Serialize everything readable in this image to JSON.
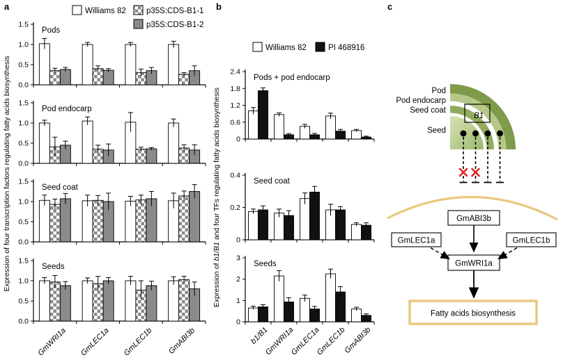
{
  "figure": {
    "panel_letters": [
      "a",
      "b",
      "c"
    ]
  },
  "colors": {
    "bar_white": "#ffffff",
    "bar_gray": "#8a8a8a",
    "bar_black": "#111111",
    "checker_gray": "#8a8a8a",
    "pod_green": "#7e9a4b",
    "endocarp_green": "#b6c887",
    "seed_coat_green": "#92ac5e",
    "seed_light_green": "#d6e3b4",
    "seed_dark_green": "#9cb96d",
    "membrane_tan": "#e9c87e",
    "x_red": "#e62226"
  },
  "chart_data": [
    {
      "panel": "a",
      "type": "bar",
      "ylabel": "Expression of four transcription factors regulating fatty acids biosynthesis",
      "categories": [
        "GmWRI1a",
        "GmLEC1a",
        "GmLEC1b",
        "GmABI3b"
      ],
      "legend": [
        {
          "label": "Williams 82",
          "style": "white"
        },
        {
          "label": "p35S:CDS-B1-1",
          "style": "checker"
        },
        {
          "label": "p35S:CDS-B1-2",
          "style": "gray"
        }
      ],
      "subcharts": [
        {
          "title": "Pods",
          "ylim": [
            0,
            1.5
          ],
          "yticks": [
            "0.0",
            "0.5",
            "1.0",
            "1.5"
          ],
          "series": [
            {
              "name": "Williams 82",
              "style": "white",
              "values": [
                1.02,
                1.0,
                1.0,
                1.0
              ],
              "errors": [
                0.13,
                0.05,
                0.05,
                0.08
              ]
            },
            {
              "name": "p35S:CDS-B1-1",
              "style": "checker",
              "values": [
                0.35,
                0.4,
                0.3,
                0.26
              ],
              "errors": [
                0.06,
                0.07,
                0.09,
                0.04
              ]
            },
            {
              "name": "p35S:CDS-B1-2",
              "style": "gray",
              "values": [
                0.38,
                0.36,
                0.35,
                0.35
              ],
              "errors": [
                0.05,
                0.04,
                0.08,
                0.12
              ]
            }
          ]
        },
        {
          "title": "Pod endocarp",
          "ylim": [
            0,
            1.5
          ],
          "yticks": [
            "0.0",
            "0.5",
            "1.0",
            "1.5"
          ],
          "series": [
            {
              "name": "Williams 82",
              "style": "white",
              "values": [
                1.0,
                1.05,
                1.02,
                1.0
              ],
              "errors": [
                0.07,
                0.1,
                0.24,
                0.1
              ]
            },
            {
              "name": "p35S:CDS-B1-1",
              "style": "checker",
              "values": [
                0.41,
                0.35,
                0.35,
                0.38
              ],
              "errors": [
                0.24,
                0.1,
                0.05,
                0.08
              ]
            },
            {
              "name": "p35S:CDS-B1-2",
              "style": "gray",
              "values": [
                0.45,
                0.33,
                0.36,
                0.33
              ],
              "errors": [
                0.1,
                0.15,
                0.03,
                0.13
              ]
            }
          ]
        },
        {
          "title": "Seed coat",
          "ylim": [
            0,
            1.5
          ],
          "yticks": [
            "0.0",
            "0.5",
            "1.0",
            "1.5"
          ],
          "series": [
            {
              "name": "Williams 82",
              "style": "white",
              "values": [
                1.03,
                1.02,
                1.01,
                1.02
              ],
              "errors": [
                0.13,
                0.14,
                0.12,
                0.19
              ]
            },
            {
              "name": "p35S:CDS-B1-1",
              "style": "checker",
              "values": [
                0.93,
                1.03,
                1.04,
                1.14
              ],
              "errors": [
                0.13,
                0.12,
                0.12,
                0.12
              ]
            },
            {
              "name": "p35S:CDS-B1-2",
              "style": "gray",
              "values": [
                1.07,
                1.0,
                1.07,
                1.25
              ],
              "errors": [
                0.13,
                0.21,
                0.18,
                0.17
              ]
            }
          ]
        },
        {
          "title": "Seeds",
          "ylim": [
            0,
            1.5
          ],
          "yticks": [
            "0.0",
            "0.5",
            "1.0",
            "1.5"
          ],
          "series": [
            {
              "name": "Williams 82",
              "style": "white",
              "values": [
                1.0,
                1.0,
                1.0,
                1.0
              ],
              "errors": [
                0.08,
                0.07,
                0.11,
                0.1
              ]
            },
            {
              "name": "p35S:CDS-B1-1",
              "style": "checker",
              "values": [
                0.97,
                0.93,
                0.77,
                1.03
              ],
              "errors": [
                0.16,
                0.18,
                0.23,
                0.08
              ]
            },
            {
              "name": "p35S:CDS-B1-2",
              "style": "gray",
              "values": [
                0.88,
                1.0,
                0.88,
                0.8
              ],
              "errors": [
                0.1,
                0.08,
                0.11,
                0.17
              ]
            }
          ]
        }
      ]
    },
    {
      "panel": "b",
      "type": "bar",
      "ylabel": "Expression of b1/B1 and four TFs regulating fatty acids biosynthesis",
      "ylabel_parts": [
        "Expression of ",
        "b1/B1",
        " and four TFs regulating fatty acids biosynthesis"
      ],
      "categories": [
        "b1/B1",
        "GmWRI1a",
        "GmLEC1a",
        "GmLEC1b",
        "GmABI3b"
      ],
      "legend": [
        {
          "label": "Williams 82",
          "style": "white"
        },
        {
          "label": "PI 468916",
          "style": "black"
        }
      ],
      "subcharts": [
        {
          "title": "Pods + pod endocarp",
          "ylim": [
            0,
            2.4
          ],
          "yticks": [
            "0",
            "0.6",
            "1.2",
            "1.8",
            "2.4"
          ],
          "series": [
            {
              "name": "Williams 82",
              "style": "white",
              "values": [
                1.0,
                0.87,
                0.45,
                0.82,
                0.3
              ],
              "errors": [
                0.12,
                0.06,
                0.07,
                0.1,
                0.04
              ]
            },
            {
              "name": "PI 468916",
              "style": "black",
              "values": [
                1.72,
                0.15,
                0.15,
                0.28,
                0.07
              ],
              "errors": [
                0.1,
                0.04,
                0.05,
                0.06,
                0.03
              ]
            }
          ]
        },
        {
          "title": "Seed coat",
          "ylim": [
            0,
            0.4
          ],
          "yticks": [
            "0",
            "0.2",
            "0.4"
          ],
          "series": [
            {
              "name": "Williams 82",
              "style": "white",
              "values": [
                0.175,
                0.165,
                0.255,
                0.185,
                0.095
              ],
              "errors": [
                0.015,
                0.025,
                0.035,
                0.035,
                0.01
              ]
            },
            {
              "name": "PI 468916",
              "style": "black",
              "values": [
                0.185,
                0.15,
                0.295,
                0.185,
                0.09
              ],
              "errors": [
                0.025,
                0.03,
                0.035,
                0.02,
                0.015
              ]
            }
          ]
        },
        {
          "title": "Seeds",
          "ylim": [
            0,
            3
          ],
          "yticks": [
            "0",
            "1",
            "2",
            "3"
          ],
          "series": [
            {
              "name": "Williams 82",
              "style": "white",
              "values": [
                0.65,
                2.15,
                1.1,
                2.25,
                0.6
              ],
              "errors": [
                0.08,
                0.25,
                0.15,
                0.22,
                0.08
              ]
            },
            {
              "name": "PI 468916",
              "style": "black",
              "values": [
                0.7,
                0.93,
                0.6,
                1.4,
                0.3
              ],
              "errors": [
                0.1,
                0.2,
                0.12,
                0.25,
                0.07
              ]
            }
          ]
        }
      ]
    }
  ],
  "diagram": {
    "layer_labels": [
      "Pod",
      "Pod endocarp",
      "Seed coat",
      "Seed"
    ],
    "b1_box_label": "B1",
    "boxes": {
      "abi3b": "GmABI3b",
      "lec1a": "GmLEC1a",
      "lec1b": "GmLEC1b",
      "wri1a": "GmWRI1a",
      "output": "Fatty acids biosynthesis"
    }
  }
}
